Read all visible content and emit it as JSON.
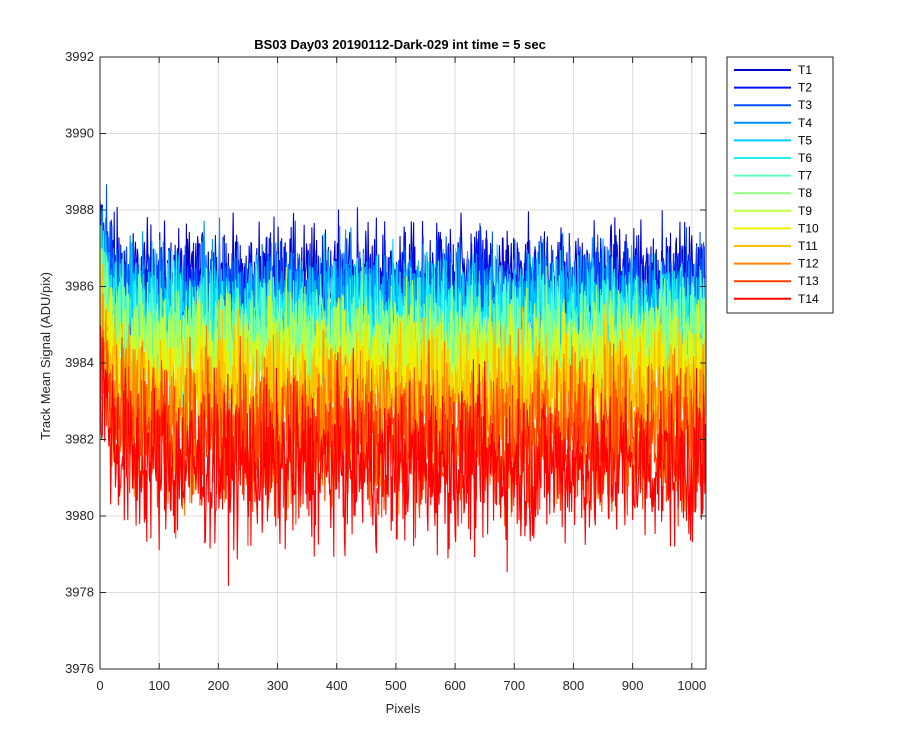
{
  "chart_data": {
    "type": "line",
    "title": "BS03 Day03 20190112-Dark-029 int time = 5 sec",
    "xlabel": "Pixels",
    "ylabel": "Track Mean Signal (ADU/pix)",
    "xlim": [
      0,
      1024
    ],
    "ylim": [
      3976,
      3992
    ],
    "xticks": [
      0,
      100,
      200,
      300,
      400,
      500,
      600,
      700,
      800,
      900,
      1000
    ],
    "yticks": [
      3976,
      3978,
      3980,
      3982,
      3984,
      3986,
      3988,
      3990,
      3992
    ],
    "grid": true,
    "legend_position": "outside-top-right",
    "colormap": "jet",
    "n_points": 1024,
    "series": [
      {
        "name": "T1",
        "color": "#0000cc",
        "mean": 3986.1,
        "noise": 0.75,
        "start_offset": 1.4
      },
      {
        "name": "T2",
        "color": "#0010ee",
        "mean": 3985.9,
        "noise": 0.75,
        "start_offset": 1.5
      },
      {
        "name": "T3",
        "color": "#0050ff",
        "mean": 3985.7,
        "noise": 0.75,
        "start_offset": 1.6
      },
      {
        "name": "T4",
        "color": "#0090ff",
        "mean": 3985.5,
        "noise": 0.78,
        "start_offset": 1.7
      },
      {
        "name": "T5",
        "color": "#00ccff",
        "mean": 3985.3,
        "noise": 0.78,
        "start_offset": 1.8
      },
      {
        "name": "T6",
        "color": "#20f0f0",
        "mean": 3985.0,
        "noise": 0.8,
        "start_offset": 1.9
      },
      {
        "name": "T7",
        "color": "#60ffc0",
        "mean": 3984.7,
        "noise": 0.8,
        "start_offset": 2.0
      },
      {
        "name": "T8",
        "color": "#90ff80",
        "mean": 3984.4,
        "noise": 0.82,
        "start_offset": 2.1
      },
      {
        "name": "T9",
        "color": "#c0ff40",
        "mean": 3984.0,
        "noise": 0.85,
        "start_offset": 2.2
      },
      {
        "name": "T10",
        "color": "#f0f000",
        "mean": 3983.6,
        "noise": 0.9,
        "start_offset": 2.3
      },
      {
        "name": "T11",
        "color": "#ffc000",
        "mean": 3983.1,
        "noise": 0.95,
        "start_offset": 2.4
      },
      {
        "name": "T12",
        "color": "#ff8000",
        "mean": 3982.5,
        "noise": 1.0,
        "start_offset": 2.5
      },
      {
        "name": "T13",
        "color": "#ff4000",
        "mean": 3981.9,
        "noise": 1.0,
        "start_offset": 2.6
      },
      {
        "name": "T14",
        "color": "#ff0000",
        "mean": 3981.3,
        "noise": 1.05,
        "start_offset": 2.7
      }
    ]
  }
}
